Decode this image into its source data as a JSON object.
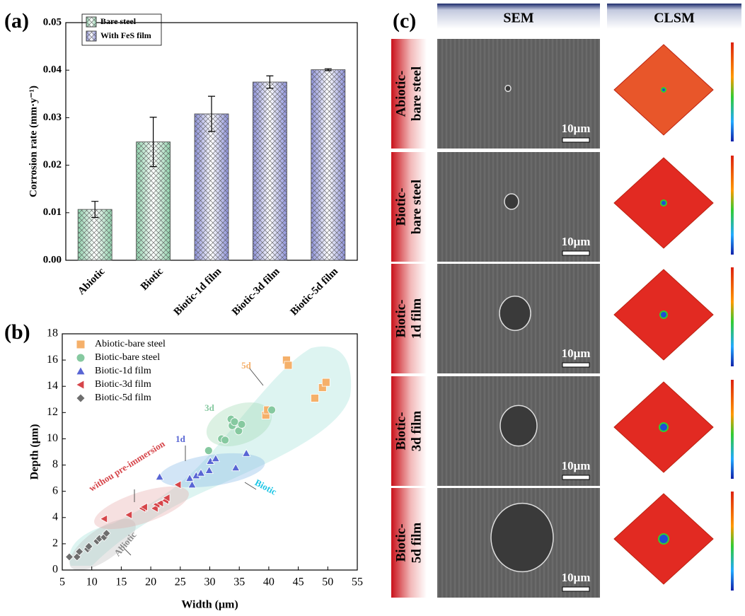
{
  "chart_data": [
    {
      "type": "bar",
      "panel_label": "(a)",
      "y_label": "Corrosion rate (mm·y⁻¹)",
      "categories": [
        "Abiotic",
        "Biotic",
        "Biotic-1d film",
        "Biotic-3d film",
        "Biotic-5d film"
      ],
      "series": [
        {
          "name": "Bare steel",
          "color": "#8fd0ab",
          "values": [
            0.0107,
            0.0249,
            null,
            null,
            null
          ],
          "errors": [
            0.0017,
            0.0052,
            null,
            null,
            null
          ]
        },
        {
          "name": "With FeS film",
          "color": "#8c90d8",
          "values": [
            null,
            null,
            0.0308,
            0.0375,
            0.0401
          ],
          "errors": [
            null,
            null,
            0.0037,
            0.0013,
            0.0002
          ]
        }
      ],
      "ylim": [
        0,
        0.05
      ],
      "yticks": [
        {
          "value": 0,
          "label": "0.00"
        },
        0.01,
        0.02,
        0.03,
        0.04,
        0.05
      ]
    },
    {
      "type": "scatter",
      "panel_label": "(b)",
      "x_label": "Width (μm)",
      "y_label": "Depth (μm)",
      "xlim": [
        5,
        55
      ],
      "xticks": [
        5,
        10,
        15,
        20,
        25,
        30,
        35,
        40,
        45,
        50,
        55
      ],
      "ylim": [
        0,
        18
      ],
      "yticks": [
        0,
        2,
        4,
        6,
        8,
        10,
        12,
        14,
        16,
        18
      ],
      "series": [
        {
          "name": "Abiotic-bare steel",
          "color": "#f5b06a",
          "marker": "square",
          "x": [
            43.0,
            43.3,
            47.8,
            49.1,
            49.7,
            39.5,
            39.8
          ],
          "y": [
            16.0,
            15.6,
            13.1,
            13.9,
            14.3,
            11.8,
            12.2
          ]
        },
        {
          "name": "Biotic-bare steel",
          "color": "#86c9a0",
          "marker": "circle",
          "x": [
            29.8,
            32.0,
            32.6,
            33.6,
            33.8,
            34.2,
            34.9,
            35.4,
            40.5
          ],
          "y": [
            9.1,
            10.0,
            9.9,
            11.5,
            11.0,
            11.3,
            10.6,
            11.1,
            12.2
          ]
        },
        {
          "name": "Biotic-1d film",
          "color": "#5865d4",
          "marker": "triangle",
          "x": [
            21.5,
            26.6,
            27.0,
            27.7,
            28.5,
            29.9,
            30.1,
            31.0,
            34.4,
            36.2
          ],
          "y": [
            7.1,
            7.0,
            6.5,
            7.2,
            7.4,
            7.6,
            8.3,
            8.5,
            7.8,
            8.9
          ]
        },
        {
          "name": "Biotic-3d film",
          "color": "#d6454a",
          "marker": "left-triangle",
          "x": [
            12.1,
            16.3,
            18.6,
            18.9,
            20.7,
            21.0,
            21.6,
            22.5,
            22.7,
            24.6
          ],
          "y": [
            3.9,
            4.2,
            4.7,
            4.8,
            4.7,
            5.0,
            5.1,
            5.3,
            5.5,
            6.5
          ]
        },
        {
          "name": "Biotic-5d film",
          "color": "#6e6e6e",
          "marker": "diamond",
          "x": [
            6.2,
            7.5,
            7.9,
            9.3,
            9.5,
            10.9,
            11.3,
            12.1,
            12.5
          ],
          "y": [
            1.0,
            1.0,
            1.4,
            1.6,
            1.8,
            2.2,
            2.4,
            2.5,
            2.8
          ]
        }
      ],
      "annotations": [
        {
          "text": "5d",
          "color": "#f5b06a"
        },
        {
          "text": "3d",
          "color": "#86c9a0"
        },
        {
          "text": "1d",
          "color": "#5865d4"
        },
        {
          "text": "withou pre-immersion",
          "color": "#d6454a"
        },
        {
          "text": "Biotic",
          "color": "#1ec6e6"
        },
        {
          "text": "Abiotic",
          "color": "#8a8a8a"
        }
      ]
    }
  ],
  "panel_c": {
    "label": "(c)",
    "headers": [
      "SEM",
      "CLSM"
    ],
    "rows": [
      {
        "label": [
          "Abiotic-",
          "bare steel"
        ],
        "scale_bar": "10μm"
      },
      {
        "label": [
          "Biotic-",
          "bare steel"
        ],
        "scale_bar": "10μm"
      },
      {
        "label": [
          "Biotic-",
          "1d film"
        ],
        "scale_bar": "10μm"
      },
      {
        "label": [
          "Biotic-",
          "3d film"
        ],
        "scale_bar": "10μm"
      },
      {
        "label": [
          "Biotic-",
          "5d film"
        ],
        "scale_bar": "10μm"
      }
    ]
  }
}
